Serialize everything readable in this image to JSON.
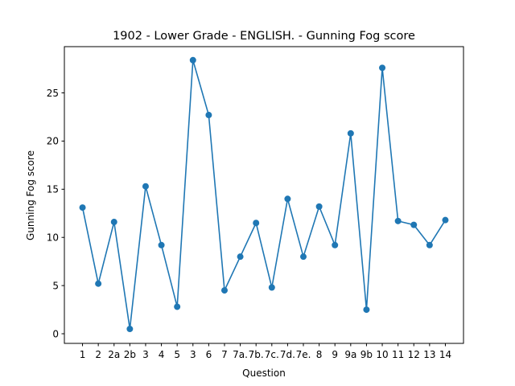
{
  "chart_data": {
    "type": "line",
    "title": "1902 - Lower Grade - ENGLISH. - Gunning Fog score",
    "xlabel": "Question",
    "ylabel": "Gunning Fog score",
    "categories": [
      "1",
      "2",
      "2a",
      "2b",
      "3",
      "4",
      "5",
      "3",
      "6",
      "7",
      "7a.",
      "7b.",
      "7c.",
      "7d.",
      "7e.",
      "8",
      "9",
      "9a",
      "9b",
      "10",
      "11",
      "12",
      "13",
      "14"
    ],
    "series": [
      {
        "values": [
          13.1,
          5.2,
          11.6,
          0.5,
          15.3,
          9.2,
          2.8,
          28.4,
          22.7,
          4.5,
          8.0,
          11.5,
          4.8,
          14.0,
          8.0,
          13.2,
          9.2,
          20.8,
          2.5,
          27.6,
          11.7,
          11.3,
          9.2,
          11.8
        ],
        "color": "#1f77b4"
      }
    ],
    "yticks": [
      0,
      5,
      10,
      15,
      20,
      25
    ],
    "ylim": [
      -1.0,
      29.8
    ],
    "grid": false,
    "legend": "none"
  }
}
